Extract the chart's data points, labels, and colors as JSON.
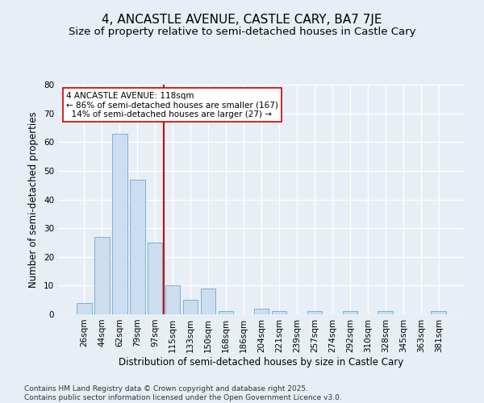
{
  "title": "4, ANCASTLE AVENUE, CASTLE CARY, BA7 7JE",
  "subtitle": "Size of property relative to semi-detached houses in Castle Cary",
  "xlabel": "Distribution of semi-detached houses by size in Castle Cary",
  "ylabel": "Number of semi-detached properties",
  "categories": [
    "26sqm",
    "44sqm",
    "62sqm",
    "79sqm",
    "97sqm",
    "115sqm",
    "133sqm",
    "150sqm",
    "168sqm",
    "186sqm",
    "204sqm",
    "221sqm",
    "239sqm",
    "257sqm",
    "274sqm",
    "292sqm",
    "310sqm",
    "328sqm",
    "345sqm",
    "363sqm",
    "381sqm"
  ],
  "values": [
    4,
    27,
    63,
    47,
    25,
    10,
    5,
    9,
    1,
    0,
    2,
    1,
    0,
    1,
    0,
    1,
    0,
    1,
    0,
    0,
    1
  ],
  "bar_color": "#ccddf0",
  "bar_edge_color": "#7ab0d4",
  "highlight_line_index": 5,
  "highlight_line_color": "#cc0000",
  "annotation_line1": "4 ANCASTLE AVENUE: 118sqm",
  "annotation_line2": "← 86% of semi-detached houses are smaller (167)",
  "annotation_line3": "  14% of semi-detached houses are larger (27) →",
  "annotation_box_color": "#ffffff",
  "annotation_box_edge": "#cc0000",
  "ylim": [
    0,
    80
  ],
  "yticks": [
    0,
    10,
    20,
    30,
    40,
    50,
    60,
    70,
    80
  ],
  "footer": "Contains HM Land Registry data © Crown copyright and database right 2025.\nContains public sector information licensed under the Open Government Licence v3.0.",
  "bg_color": "#e8eef6",
  "plot_bg_color": "#e8eef6",
  "grid_color": "#ffffff",
  "title_fontsize": 11,
  "subtitle_fontsize": 9.5,
  "label_fontsize": 8.5,
  "tick_fontsize": 7.5,
  "annotation_fontsize": 7.5,
  "footer_fontsize": 6.5
}
